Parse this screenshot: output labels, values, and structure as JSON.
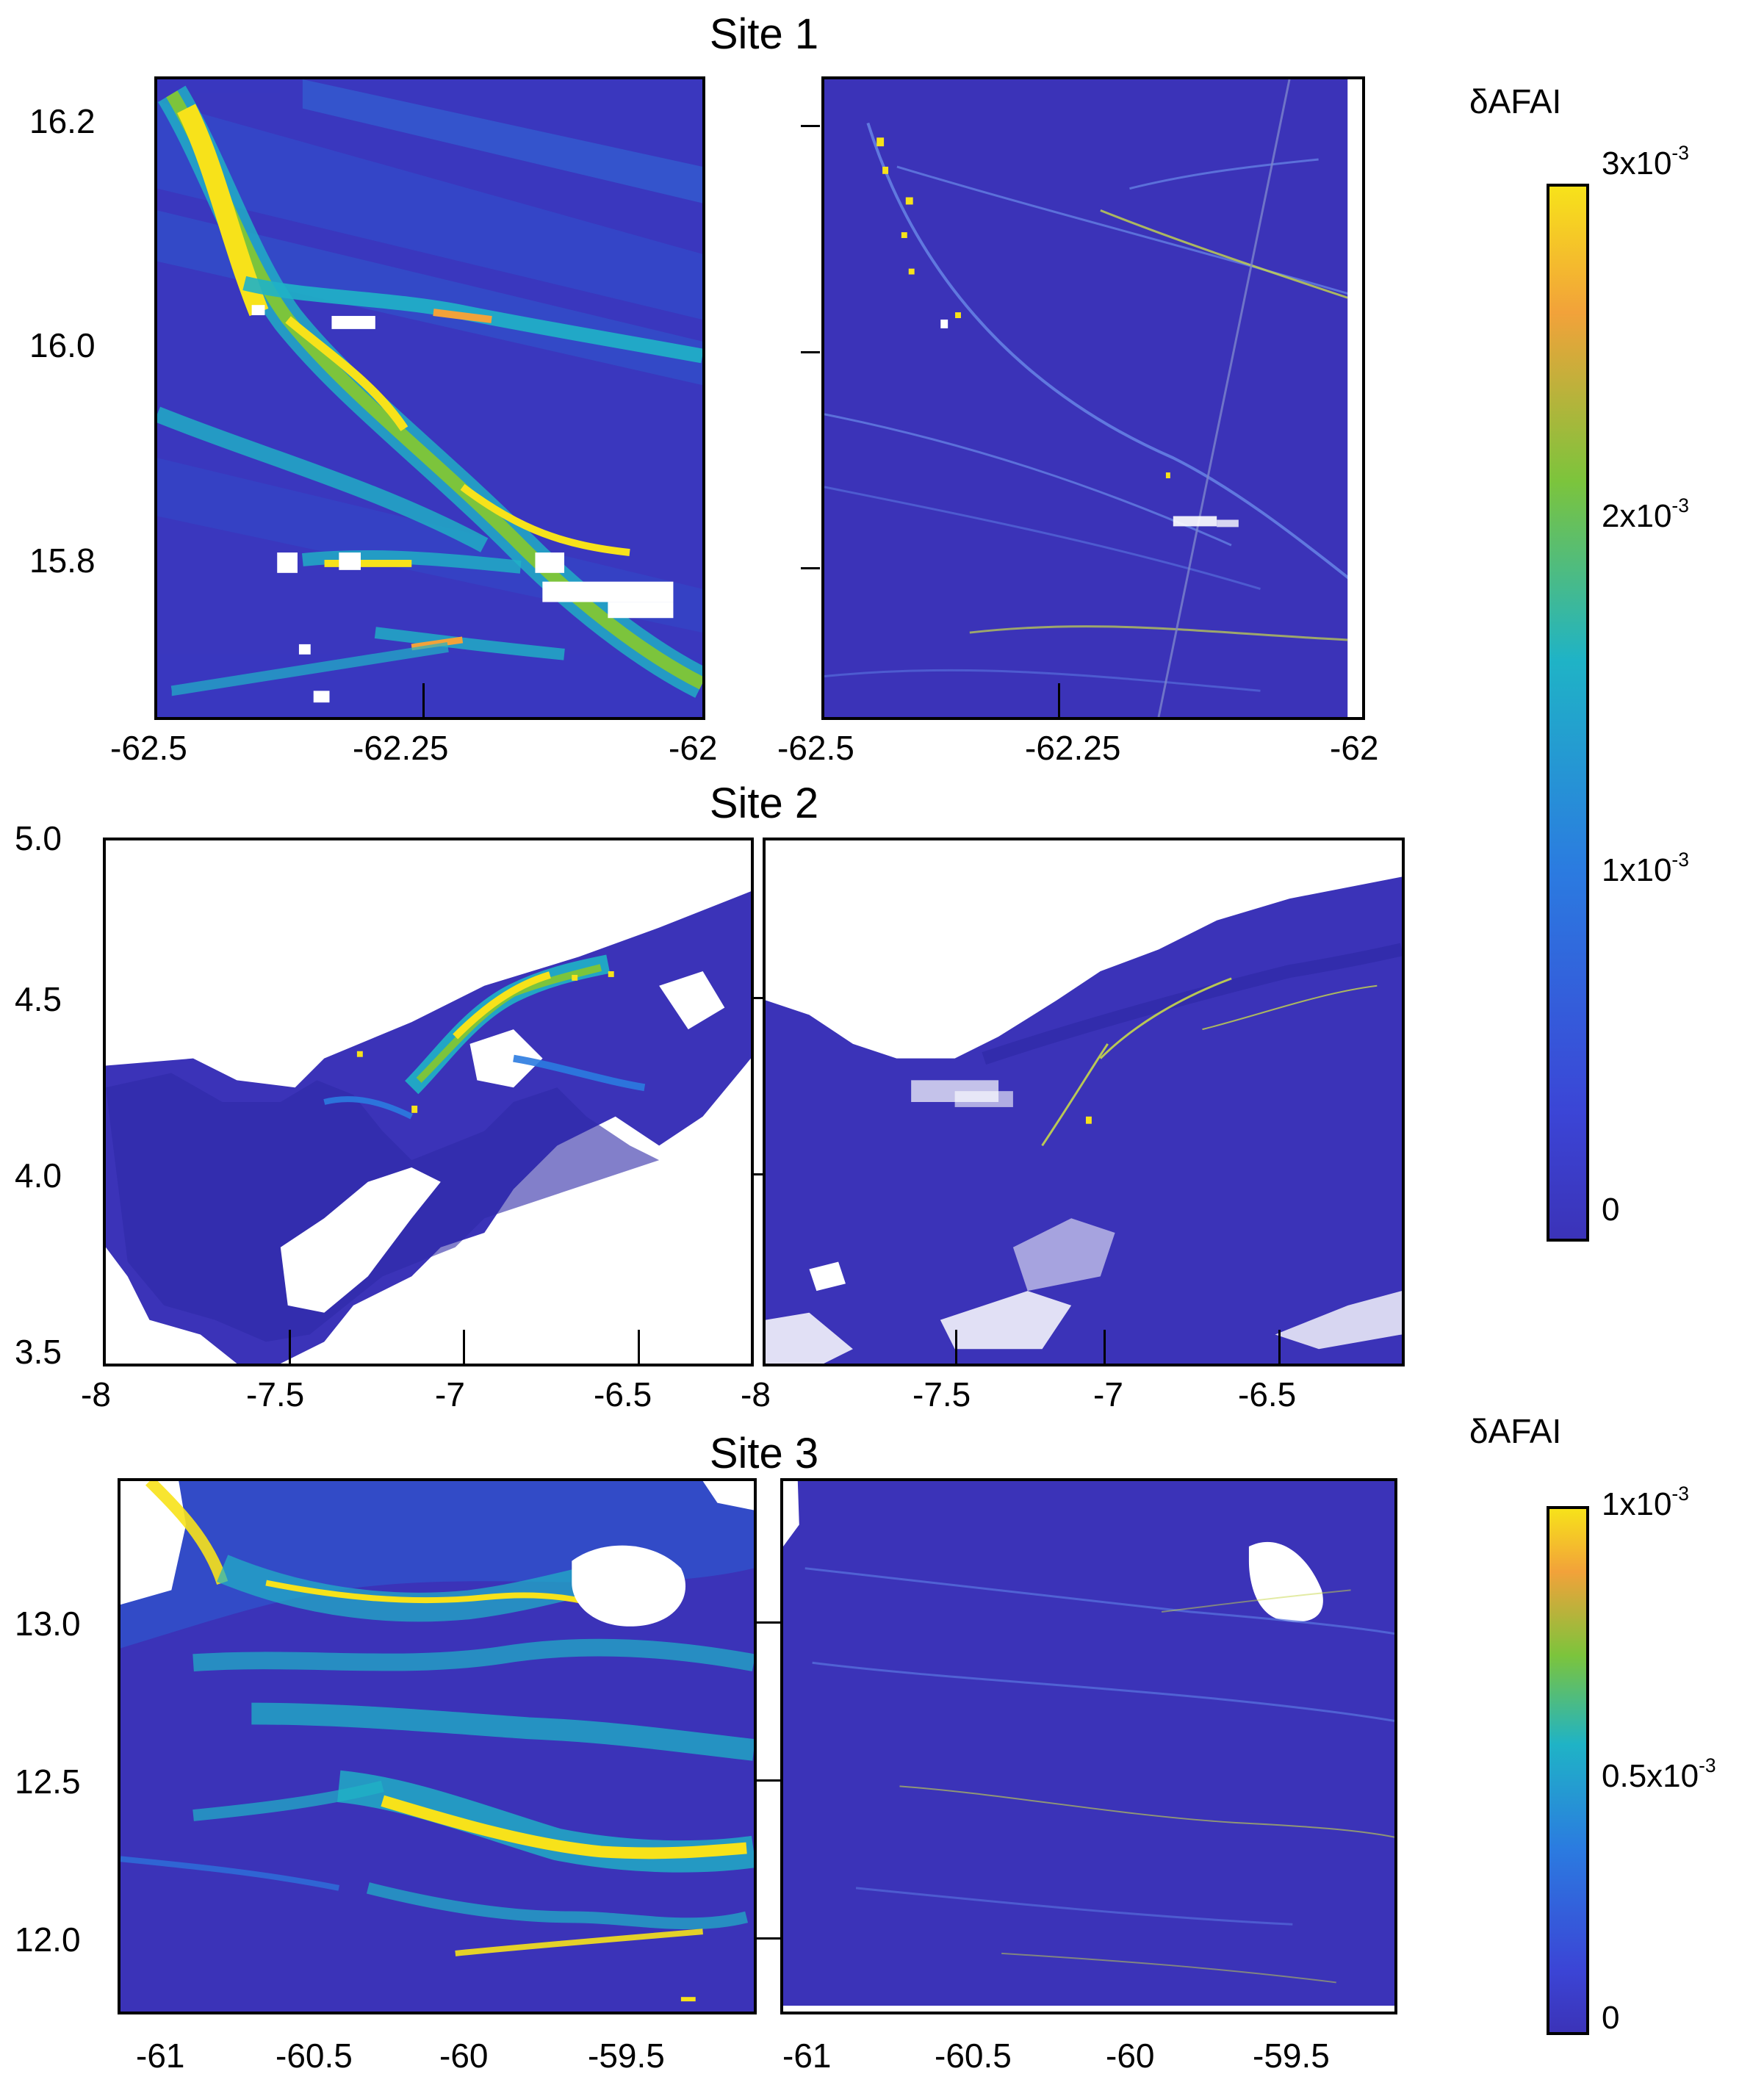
{
  "figure": {
    "sites": [
      {
        "title": "Site 1",
        "y_ticks": [
          "16.2",
          "16.0",
          "15.8"
        ],
        "x_ticks_left": [
          "-62.5",
          "-62.25",
          "-62"
        ],
        "x_ticks_right": [
          "-62.5",
          "-62.25",
          "-62"
        ]
      },
      {
        "title": "Site 2",
        "y_ticks": [
          "5.0",
          "4.5",
          "4.0",
          "3.5"
        ],
        "x_ticks_left": [
          "-8",
          "-7.5",
          "-7",
          "-6.5"
        ],
        "x_ticks_right": [
          "-8",
          "-7.5",
          "-7",
          "-6.5"
        ]
      },
      {
        "title": "Site 3",
        "y_ticks": [
          "13.0",
          "12.5",
          "12.0"
        ],
        "x_ticks_left": [
          "-61",
          "-60.5",
          "-60",
          "-59.5"
        ],
        "x_ticks_right": [
          "-61",
          "-60.5",
          "-60",
          "-59.5"
        ]
      }
    ],
    "colorbars": [
      {
        "title": "δAFAI",
        "labels": [
          {
            "base": "3x10",
            "exp": "-3"
          },
          {
            "base": "2x10",
            "exp": "-3"
          },
          {
            "base": "1x10",
            "exp": "-3"
          },
          {
            "base": "0",
            "exp": ""
          }
        ],
        "range": [
          0,
          0.003
        ]
      },
      {
        "title": "δAFAI",
        "labels": [
          {
            "base": "1x10",
            "exp": "-3"
          },
          {
            "base": "0.5x10",
            "exp": "-3"
          },
          {
            "base": "0",
            "exp": ""
          }
        ],
        "range": [
          0,
          0.001
        ]
      }
    ],
    "colors": {
      "ocean": "#3b33b8",
      "ocean_dark": "#34299f",
      "mid": "#2b7be0",
      "teal": "#1fb3c6",
      "green": "#7cc43c",
      "yellow": "#f7e21a",
      "orange": "#f2a23a",
      "land_cloud": "#ffffff"
    }
  }
}
